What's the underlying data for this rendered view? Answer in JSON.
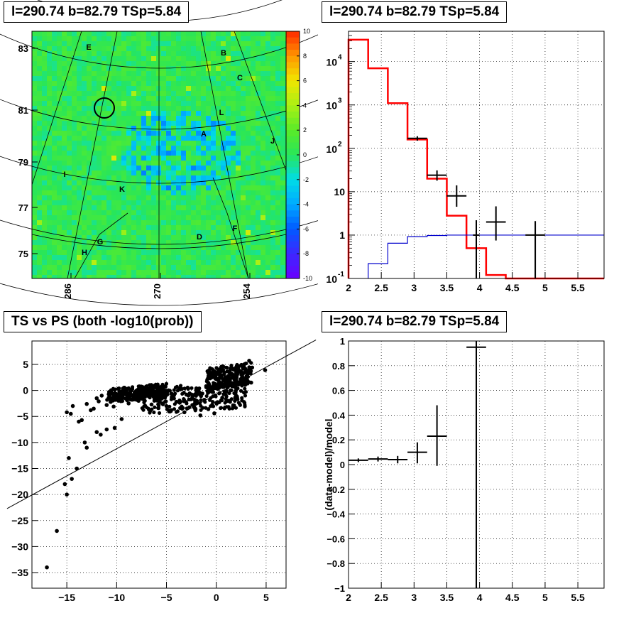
{
  "panels": {
    "skymap_title": "l=290.74 b=82.79 TSp=5.84",
    "spectrum_title": "l=290.74 b=82.79 TSp=5.84",
    "scatter_title": "TS vs PS (both -log10(prob))",
    "residual_title": "l=290.74 b=82.79 TSp=5.84"
  },
  "chart_data": [
    {
      "type": "heatmap",
      "title": "l=290.74 b=82.79 TSp=5.84",
      "x_ticks": [
        "286",
        "270",
        "254"
      ],
      "y_ticks": [
        "83",
        "81",
        "79",
        "77",
        "75"
      ],
      "colorbar_ticks": [
        "10",
        "8",
        "6",
        "4",
        "2",
        "0",
        "-2",
        "-4",
        "-6",
        "-8",
        "-10"
      ],
      "colorbar_range": [
        -10,
        10
      ],
      "source_labels": [
        "E",
        "B",
        "C",
        "L",
        "A",
        "J",
        "I",
        "K",
        "F",
        "D",
        "G",
        "H"
      ],
      "colors": {
        "low": "#6a00ff",
        "mid": "#22dd22",
        "high": "#ff2a00"
      }
    },
    {
      "type": "line",
      "title": "l=290.74 b=82.79 TSp=5.84",
      "log_y": true,
      "xlim": [
        2,
        5.9
      ],
      "ylim": [
        0.1,
        50000
      ],
      "x_ticks": [
        "2",
        "2.5",
        "3",
        "3.5",
        "4",
        "4.5",
        "5",
        "5.5"
      ],
      "y_ticks": [
        "10^-1",
        "1",
        "10",
        "10^2",
        "10^3",
        "10^4"
      ],
      "grid": true,
      "series": [
        {
          "color": "#ff0000",
          "style": "step",
          "edges": [
            2,
            2.3,
            2.6,
            2.9,
            3.2,
            3.5,
            3.8,
            4.1,
            4.4,
            5.9
          ],
          "values": [
            32000,
            7000,
            1100,
            160,
            20,
            2.8,
            0.5,
            0.12,
            0.1
          ]
        },
        {
          "color": "#0000cc",
          "style": "step",
          "edges": [
            2.3,
            2.6,
            2.9,
            3.2,
            3.5,
            3.8,
            4.1,
            4.4,
            5.9
          ],
          "values": [
            0.22,
            0.65,
            0.92,
            0.98,
            1.0,
            1.0,
            1.0,
            1.0
          ]
        },
        {
          "color": "#000000",
          "style": "errorbar",
          "points": [
            {
              "x": 3.05,
              "y": 170,
              "xerr": 0.15,
              "ylo": 150,
              "yhi": 190
            },
            {
              "x": 3.35,
              "y": 24,
              "xerr": 0.15,
              "ylo": 18,
              "yhi": 31
            },
            {
              "x": 3.65,
              "y": 8,
              "xerr": 0.15,
              "ylo": 4.5,
              "yhi": 14
            },
            {
              "x": 3.95,
              "y": 1,
              "xerr": 0.05,
              "ylo": 0.1,
              "yhi": 2.2
            },
            {
              "x": 4.25,
              "y": 2,
              "xerr": 0.15,
              "ylo": 0.75,
              "yhi": 4.6
            },
            {
              "x": 4.85,
              "y": 1,
              "xerr": 0.15,
              "ylo": 0.1,
              "yhi": 2.1
            }
          ]
        }
      ]
    },
    {
      "type": "scatter",
      "title": "TS vs PS (both -log10(prob))",
      "xlim": [
        -18.5,
        7
      ],
      "ylim": [
        -38,
        9.5
      ],
      "x_ticks": [
        "-15",
        "-10",
        "-5",
        "0",
        "5"
      ],
      "y_ticks": [
        "5",
        "0",
        "-5",
        "-10",
        "-15",
        "-20",
        "-25",
        "-30",
        "-35"
      ],
      "grid": true,
      "line": {
        "x1": -21,
        "y1": -22.7,
        "x2": 10,
        "y2": 9.7
      },
      "points": [
        {
          "x": -17,
          "y": -34
        },
        {
          "x": -16,
          "y": -27
        },
        {
          "x": -15,
          "y": -20
        },
        {
          "x": -15.2,
          "y": -18
        },
        {
          "x": -14.5,
          "y": -17
        },
        {
          "x": -14,
          "y": -15
        },
        {
          "x": -14.8,
          "y": -13
        },
        {
          "x": -13.2,
          "y": -10
        },
        {
          "x": -13,
          "y": -11
        },
        {
          "x": -12,
          "y": -8
        },
        {
          "x": -11,
          "y": -7.5
        },
        {
          "x": -11.6,
          "y": -8.5
        },
        {
          "x": -9.5,
          "y": -5.5
        },
        {
          "x": -10.2,
          "y": -7.2
        },
        {
          "x": -14.6,
          "y": -4.5
        },
        {
          "x": -15,
          "y": -4.2
        },
        {
          "x": -14.4,
          "y": -3
        },
        {
          "x": -13.8,
          "y": -6
        },
        {
          "x": -13.5,
          "y": -5.7
        },
        {
          "x": -12.6,
          "y": -3.8
        },
        {
          "x": -13,
          "y": -2.6
        },
        {
          "x": -12.3,
          "y": -3.5
        },
        {
          "x": -11.8,
          "y": -2.1
        },
        {
          "x": -12,
          "y": -1.5
        },
        {
          "x": -11.5,
          "y": -1.0
        },
        {
          "x": -11,
          "y": -2.8
        },
        {
          "x": -10.6,
          "y": -2.2
        },
        {
          "x": -10.3,
          "y": -3.1
        },
        {
          "x": -10.7,
          "y": -0.8
        },
        {
          "x": -9.8,
          "y": -1.3
        },
        {
          "x": -9.2,
          "y": -0.4
        },
        {
          "x": -8.8,
          "y": -2.5
        },
        {
          "x": -8.6,
          "y": -0.1
        },
        {
          "x": -8,
          "y": -1.8
        },
        {
          "x": -7.5,
          "y": 0.1
        },
        {
          "x": -7,
          "y": -0.7
        },
        {
          "x": -6.5,
          "y": -2.7
        },
        {
          "x": -6,
          "y": -0.2
        },
        {
          "x": -5.5,
          "y": -1.6
        },
        {
          "x": -5,
          "y": -3.0
        },
        {
          "x": -4.5,
          "y": -0.6
        },
        {
          "x": -4,
          "y": -2.2
        },
        {
          "x": -3.6,
          "y": 0.2
        },
        {
          "x": -3.2,
          "y": -4.2
        },
        {
          "x": -2.8,
          "y": -1.0
        },
        {
          "x": -2.4,
          "y": -2.8
        },
        {
          "x": -2,
          "y": 0.4
        },
        {
          "x": -1.6,
          "y": -4.8
        },
        {
          "x": -1.2,
          "y": -1.8
        },
        {
          "x": -0.8,
          "y": -3.6
        },
        {
          "x": -0.4,
          "y": -0.3
        },
        {
          "x": 0,
          "y": -2.4
        },
        {
          "x": 0.3,
          "y": 1.0
        },
        {
          "x": 0.6,
          "y": -1.4
        },
        {
          "x": 1,
          "y": 2.0
        },
        {
          "x": 1.3,
          "y": -0.5
        },
        {
          "x": 1.6,
          "y": 3.0
        },
        {
          "x": 1.9,
          "y": 0.6
        },
        {
          "x": 2.2,
          "y": 4.0
        },
        {
          "x": 2.5,
          "y": 1.8
        },
        {
          "x": 2.8,
          "y": 5.0
        },
        {
          "x": 3.1,
          "y": 2.8
        },
        {
          "x": 3.3,
          "y": 5.7
        },
        {
          "x": 3.6,
          "y": 4.4
        },
        {
          "x": 4.9,
          "y": 3.9
        },
        {
          "x": 3.5,
          "y": 1.5
        },
        {
          "x": 2.6,
          "y": 3.4
        },
        {
          "x": -6.8,
          "y": -1.1
        },
        {
          "x": -7.8,
          "y": -2.0
        },
        {
          "x": -9.5,
          "y": -0.9
        },
        {
          "x": -3,
          "y": -0.8
        },
        {
          "x": -1.0,
          "y": 0.6
        },
        {
          "x": 0.8,
          "y": 0.9
        },
        {
          "x": 2.0,
          "y": 2.4
        },
        {
          "x": -4.8,
          "y": 0.0
        },
        {
          "x": -2.2,
          "y": -3.3
        },
        {
          "x": -5.8,
          "y": -3.4
        },
        {
          "x": -0.2,
          "y": -4.4
        },
        {
          "x": -1.4,
          "y": -0.6
        },
        {
          "x": 1.4,
          "y": 1.5
        }
      ],
      "cloud": [
        {
          "x1": -7.5,
          "x2": 3.0,
          "y1": -4.6,
          "y2": 0.5
        },
        {
          "x1": -1.0,
          "x2": 3.5,
          "y1": 0.0,
          "y2": 4.2
        },
        {
          "x1": -11.0,
          "x2": -5.0,
          "y1": -2.4,
          "y2": 0.2
        }
      ]
    },
    {
      "type": "line",
      "title": "l=290.74 b=82.79 TSp=5.84",
      "ylabel": "(data-model)/model",
      "xlim": [
        2,
        5.9
      ],
      "ylim": [
        -1,
        1
      ],
      "x_ticks": [
        "2",
        "2.5",
        "3",
        "3.5",
        "4",
        "4.5",
        "5",
        "5.5"
      ],
      "y_ticks": [
        "1",
        "0.8",
        "0.6",
        "0.4",
        "0.2",
        "0",
        "-0.2",
        "-0.4",
        "-0.6",
        "-0.8",
        "-1"
      ],
      "grid": true,
      "series": [
        {
          "color": "#000000",
          "style": "errorbar",
          "points": [
            {
              "x": 2.15,
              "y": 0.035,
              "xerr": 0.15,
              "ylo": 0.02,
              "yhi": 0.05
            },
            {
              "x": 2.45,
              "y": 0.045,
              "xerr": 0.15,
              "ylo": 0.025,
              "yhi": 0.065
            },
            {
              "x": 2.75,
              "y": 0.04,
              "xerr": 0.15,
              "ylo": 0.01,
              "yhi": 0.07
            },
            {
              "x": 3.05,
              "y": 0.1,
              "xerr": 0.15,
              "ylo": 0.01,
              "yhi": 0.18
            },
            {
              "x": 3.35,
              "y": 0.23,
              "xerr": 0.15,
              "ylo": -0.01,
              "yhi": 0.48
            },
            {
              "x": 3.95,
              "y": 0.95,
              "xerr": 0.15,
              "ylo": -1.0,
              "yhi": 1.0
            }
          ]
        }
      ]
    }
  ]
}
